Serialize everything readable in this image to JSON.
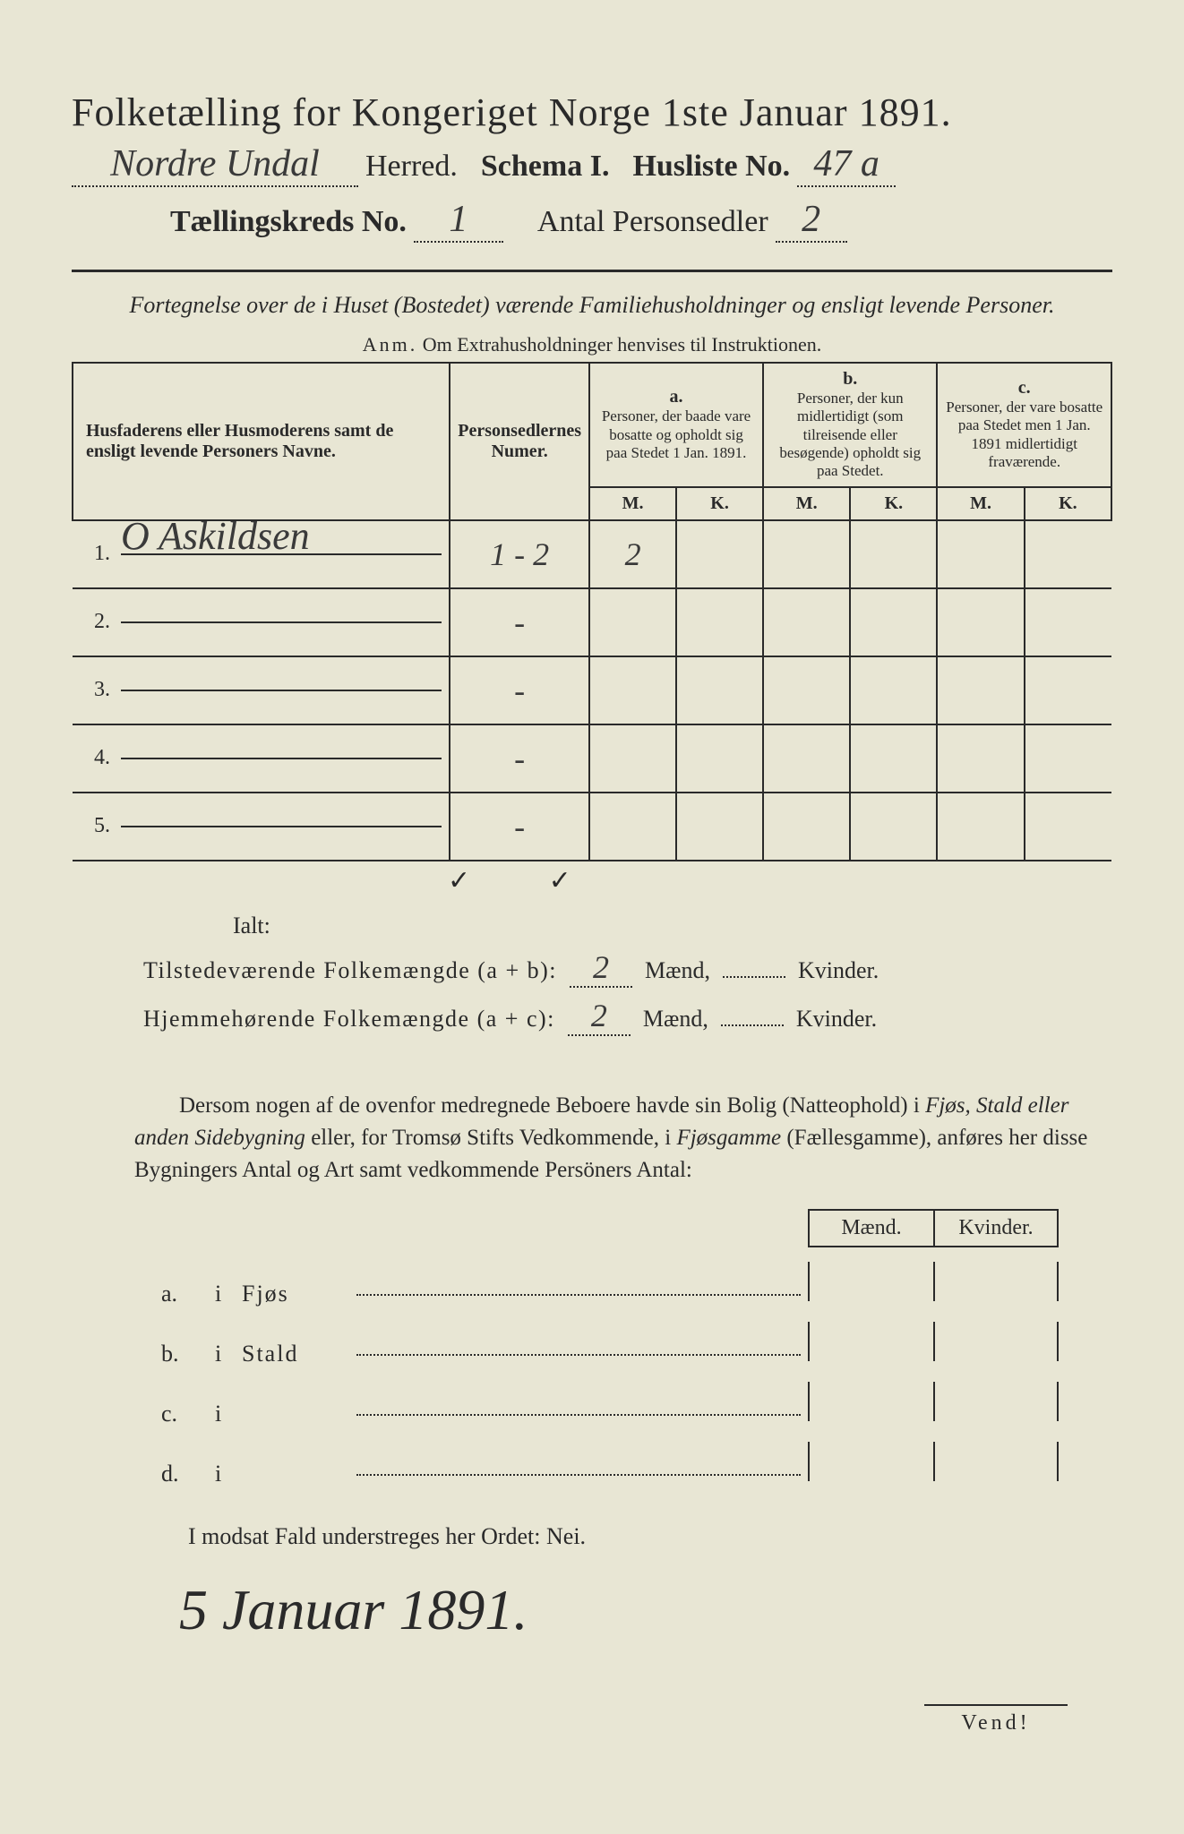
{
  "title": {
    "main": "Folketælling for Kongeriget Norge 1ste Januar 1891.",
    "herred_value": "Nordre Undal",
    "herred_label": "Herred.",
    "schema": "Schema I.",
    "husliste_label": "Husliste No.",
    "husliste_value": "47 a",
    "kreds_label": "Tællingskreds No.",
    "kreds_value": "1",
    "antal_label": "Antal Personsedler",
    "antal_value": "2"
  },
  "subtitle": "Fortegnelse over de i Huset (Bostedet) værende Familiehusholdninger og ensligt levende Personer.",
  "anm_prefix": "Anm.",
  "anm_text": "Om Extrahusholdninger henvises til Instruktionen.",
  "table": {
    "col_name": "Husfaderens eller Husmoderens samt de ensligt levende Personers Navne.",
    "col_num": "Personsedlernes Numer.",
    "col_a_hdr": "a.",
    "col_a": "Personer, der baade vare bosatte og opholdt sig paa Stedet 1 Jan. 1891.",
    "col_b_hdr": "b.",
    "col_b": "Personer, der kun midlertidigt (som tilreisende eller besøgende) opholdt sig paa Stedet.",
    "col_c_hdr": "c.",
    "col_c": "Personer, der vare bosatte paa Stedet men 1 Jan. 1891 midlertidigt fraværende.",
    "m": "M.",
    "k": "K.",
    "rows": [
      {
        "n": "1.",
        "name": "O Askildsen",
        "num": "1 - 2",
        "a_m": "2",
        "a_k": "",
        "b_m": "",
        "b_k": "",
        "c_m": "",
        "c_k": ""
      },
      {
        "n": "2.",
        "name": "",
        "num": "-",
        "a_m": "",
        "a_k": "",
        "b_m": "",
        "b_k": "",
        "c_m": "",
        "c_k": ""
      },
      {
        "n": "3.",
        "name": "",
        "num": "-",
        "a_m": "",
        "a_k": "",
        "b_m": "",
        "b_k": "",
        "c_m": "",
        "c_k": ""
      },
      {
        "n": "4.",
        "name": "",
        "num": "-",
        "a_m": "",
        "a_k": "",
        "b_m": "",
        "b_k": "",
        "c_m": "",
        "c_k": ""
      },
      {
        "n": "5.",
        "name": "",
        "num": "-",
        "a_m": "",
        "a_k": "",
        "b_m": "",
        "b_k": "",
        "c_m": "",
        "c_k": ""
      }
    ]
  },
  "checks": "✓   ✓",
  "ialt": "Ialt:",
  "sum1": {
    "label": "Tilstedeværende Folkemængde (a + b):",
    "m": "2",
    "m_lbl": "Mænd,",
    "k": "",
    "k_lbl": "Kvinder."
  },
  "sum2": {
    "label": "Hjemmehørende Folkemængde (a + c):",
    "m": "2",
    "m_lbl": "Mænd,",
    "k": "",
    "k_lbl": "Kvinder."
  },
  "para": {
    "t1": "Dersom nogen af de ovenfor medregnede Beboere havde sin Bolig (Natteophold) i ",
    "it1": "Fjøs, Stald eller anden Sidebygning",
    "t2": " eller, for Tromsø Stifts Vedkommende, i ",
    "it2": "Fjøsgamme",
    "t3": " (Fællesgamme), anføres her disse Bygningers Antal og Art samt vedkommende Persöners Antal:"
  },
  "side_hdr_m": "Mænd.",
  "side_hdr_k": "Kvinder.",
  "side_rows": [
    {
      "a": "a.",
      "i": "i",
      "lab": "Fjøs"
    },
    {
      "a": "b.",
      "i": "i",
      "lab": "Stald"
    },
    {
      "a": "c.",
      "i": "i",
      "lab": ""
    },
    {
      "a": "d.",
      "i": "i",
      "lab": ""
    }
  ],
  "bottom_note": "I modsat Fald understreges her Ordet: Nei.",
  "date": "5 Januar 1891.",
  "vend": "Vend!",
  "colors": {
    "bg": "#e8e6d4",
    "ink": "#2a2a2a"
  }
}
